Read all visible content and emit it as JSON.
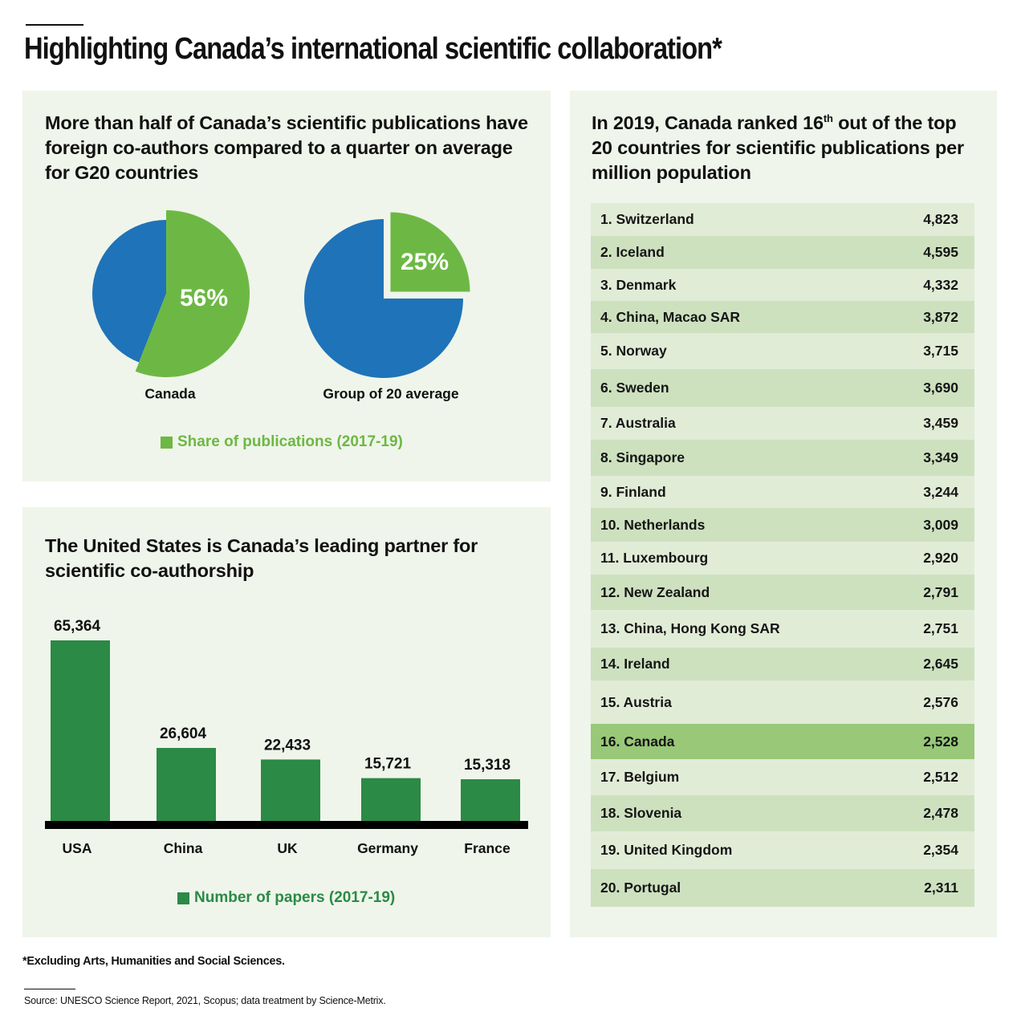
{
  "page": {
    "title": "Highlighting Canada’s international scientific collaboration*",
    "footnote": "*Excluding Arts, Humanities and Social Sciences.",
    "source": "Source: UNESCO Science Report, 2021, Scopus; data treatment by Science-Metrix."
  },
  "colors": {
    "panel_bg": "#eff5ea",
    "pie_blue": "#1f73b8",
    "pie_green": "#6db844",
    "bar_green": "#2b8a45",
    "row_light": "#e1ecd7",
    "row_dark": "#cde1bf",
    "row_highlight": "#98c878"
  },
  "pies_panel": {
    "title": "More than half of Canada’s scientific publications have foreign co-authors compared to a quarter on average for G20 countries",
    "legend": "Share of publications (2017-19)"
  },
  "bars_panel": {
    "title": "The United States is Canada’s leading partner for scientific co-authorship",
    "legend": "Number of papers (2017-19)"
  },
  "ranking_panel": {
    "title_pre": "In 2019, Canada ranked 16",
    "title_sup": "th",
    "title_post": " out of the top 20 countries for scientific publications per million population"
  },
  "chart_data": [
    {
      "type": "pie",
      "label": "Canada",
      "series": "Share of publications (2017-19)",
      "value": 56,
      "value_label": "56%"
    },
    {
      "type": "pie",
      "label": "Group of 20 average",
      "series": "Share of publications (2017-19)",
      "value": 25,
      "value_label": "25%"
    },
    {
      "type": "bar",
      "title": "The United States is Canada’s leading partner for scientific co-authorship",
      "categories": [
        "USA",
        "China",
        "UK",
        "Germany",
        "France"
      ],
      "series": [
        {
          "name": "Number of papers (2017-19)",
          "values": [
            65364,
            26604,
            22433,
            15721,
            15318
          ],
          "labels": [
            "65,364",
            "26,604",
            "22,433",
            "15,721",
            "15,318"
          ]
        }
      ],
      "ylim": [
        0,
        65364
      ],
      "grid": false,
      "legend": "bottom"
    },
    {
      "type": "table",
      "title": "In 2019, Canada ranked 16th out of the top 20 countries for scientific publications per million population",
      "highlight": "16. Canada",
      "rows": [
        {
          "label": "1. Switzerland",
          "value": 4823,
          "display": "4,823"
        },
        {
          "label": "2. Iceland",
          "value": 4595,
          "display": "4,595"
        },
        {
          "label": "3. Denmark",
          "value": 4332,
          "display": "4,332"
        },
        {
          "label": "4. China, Macao SAR",
          "value": 3872,
          "display": "3,872"
        },
        {
          "label": "5. Norway",
          "value": 3715,
          "display": "3,715"
        },
        {
          "label": "6. Sweden",
          "value": 3690,
          "display": "3,690"
        },
        {
          "label": "7. Australia",
          "value": 3459,
          "display": "3,459"
        },
        {
          "label": "8. Singapore",
          "value": 3349,
          "display": "3,349"
        },
        {
          "label": "9. Finland",
          "value": 3244,
          "display": "3,244"
        },
        {
          "label": "10. Netherlands",
          "value": 3009,
          "display": "3,009"
        },
        {
          "label": "11. Luxembourg",
          "value": 2920,
          "display": "2,920"
        },
        {
          "label": "12. New Zealand",
          "value": 2791,
          "display": "2,791"
        },
        {
          "label": "13. China, Hong Kong SAR",
          "value": 2751,
          "display": "2,751"
        },
        {
          "label": "14. Ireland",
          "value": 2645,
          "display": "2,645"
        },
        {
          "label": "15. Austria",
          "value": 2576,
          "display": "2,576"
        },
        {
          "label": "16. Canada",
          "value": 2528,
          "display": "2,528"
        },
        {
          "label": "17. Belgium",
          "value": 2512,
          "display": "2,512"
        },
        {
          "label": "18. Slovenia",
          "value": 2478,
          "display": "2,478"
        },
        {
          "label": "19. United Kingdom",
          "value": 2354,
          "display": "2,354"
        },
        {
          "label": "20. Portugal",
          "value": 2311,
          "display": "2,311"
        }
      ]
    }
  ]
}
